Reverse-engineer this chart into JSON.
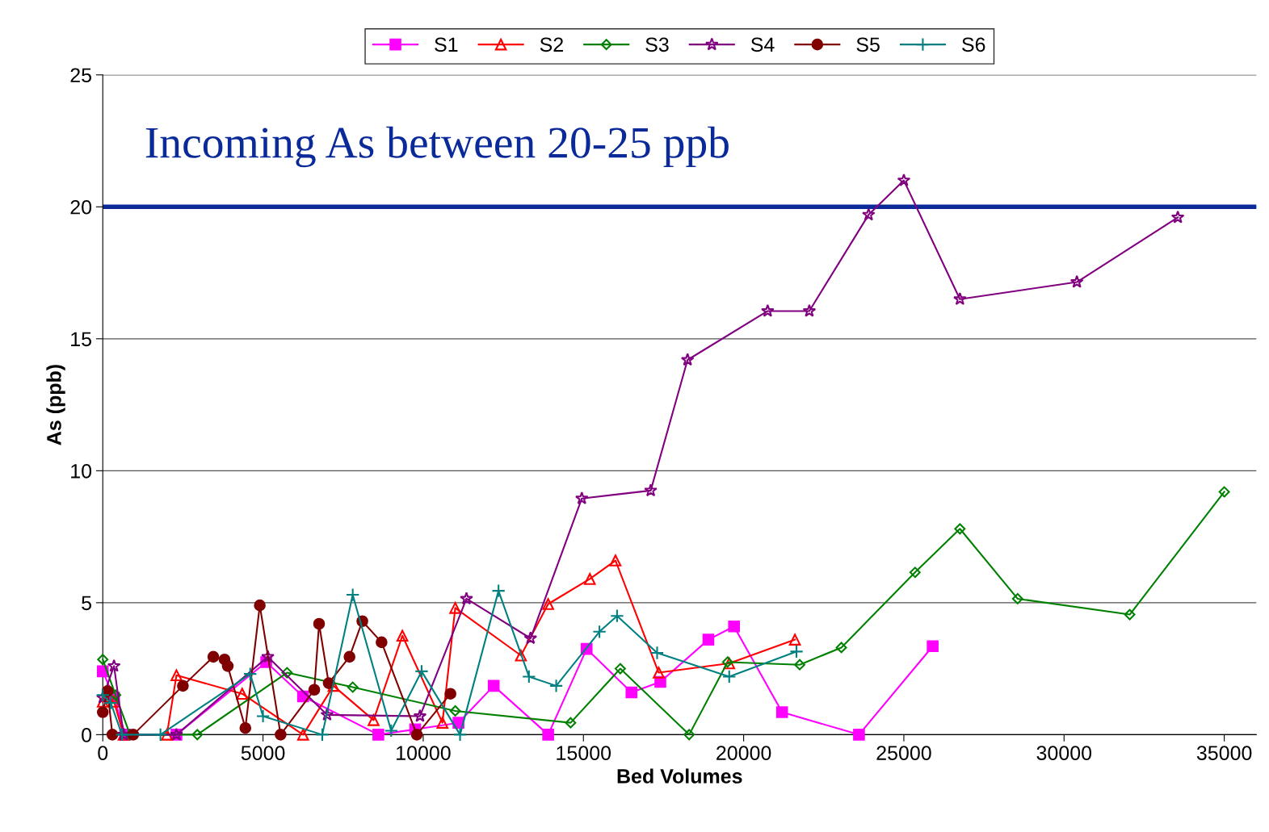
{
  "chart_data": {
    "type": "line",
    "xlabel": "Bed Volumes",
    "ylabel": "As (ppb)",
    "xlim": [
      0,
      36000
    ],
    "xticks": [
      0,
      5000,
      10000,
      15000,
      20000,
      25000,
      30000,
      35000
    ],
    "ylim": [
      0,
      25
    ],
    "yticks": [
      0,
      5,
      10,
      15,
      20,
      25
    ],
    "grid": "y",
    "legend": "top",
    "ref_lines": [
      {
        "axis": "y",
        "value": 20,
        "label": "Incoming As between 20-25 ppb",
        "color": "#0a2a9a"
      }
    ],
    "series": [
      {
        "name": "S1",
        "color": "#ff00ff",
        "marker": "square",
        "x": [
          0,
          350,
          700,
          2300,
          5100,
          6250,
          8600,
          9750,
          11100,
          12200,
          13900,
          15100,
          16500,
          17400,
          18900,
          19700,
          21200,
          23600,
          25900
        ],
        "values": [
          2.4,
          1.4,
          0,
          0,
          2.75,
          1.45,
          0,
          0.2,
          0.45,
          1.85,
          0,
          3.25,
          1.6,
          2.0,
          3.6,
          4.1,
          0.85,
          0,
          3.35
        ]
      },
      {
        "name": "S2",
        "color": "#ff0000",
        "marker": "triangle",
        "x": [
          0,
          350,
          650,
          2000,
          2300,
          4350,
          6250,
          7200,
          8450,
          9350,
          10600,
          11000,
          13050,
          13900,
          15200,
          16000,
          17350,
          19550,
          21600
        ],
        "values": [
          1.25,
          1.25,
          0,
          0,
          2.25,
          1.55,
          0,
          1.85,
          0.55,
          3.75,
          0.45,
          4.8,
          3.0,
          4.95,
          5.9,
          6.6,
          2.35,
          2.7,
          3.6
        ]
      },
      {
        "name": "S3",
        "color": "#008000",
        "marker": "diamond",
        "x": [
          0,
          400,
          850,
          2950,
          5750,
          7800,
          11000,
          14600,
          16150,
          18300,
          19500,
          21750,
          23050,
          25350,
          26750,
          28550,
          32050,
          35000
        ],
        "values": [
          2.85,
          1.5,
          0,
          0,
          2.35,
          1.8,
          0.9,
          0.45,
          2.5,
          0,
          2.75,
          2.65,
          3.3,
          6.15,
          7.8,
          5.15,
          4.55,
          9.2
        ]
      },
      {
        "name": "S4",
        "color": "#800080",
        "marker": "star",
        "x": [
          0,
          350,
          650,
          2300,
          5150,
          7000,
          9900,
          11350,
          13350,
          14950,
          17100,
          18250,
          20750,
          22050,
          23900,
          25000,
          26750,
          30400,
          33550
        ],
        "values": [
          1.4,
          2.6,
          0,
          0,
          2.95,
          0.75,
          0.7,
          5.15,
          3.65,
          8.95,
          9.25,
          14.2,
          16.05,
          16.05,
          19.7,
          21.0,
          16.5,
          17.15,
          19.6
        ]
      },
      {
        "name": "S5",
        "color": "#800000",
        "marker": "circle",
        "x": [
          0,
          150,
          300,
          950,
          2500,
          3450,
          3800,
          3900,
          4450,
          4900,
          5550,
          6600,
          6750,
          7050,
          7700,
          8100,
          8700,
          9800,
          10850
        ],
        "values": [
          0.85,
          1.65,
          0,
          0,
          1.85,
          2.95,
          2.85,
          2.6,
          0.25,
          4.9,
          0,
          1.7,
          4.2,
          1.95,
          2.95,
          4.3,
          3.5,
          0,
          1.55
        ]
      },
      {
        "name": "S6",
        "color": "#008080",
        "marker": "cross",
        "x": [
          0,
          250,
          600,
          1800,
          4600,
          5000,
          6850,
          7800,
          9000,
          9950,
          11150,
          12350,
          13300,
          14150,
          15500,
          16050,
          17300,
          19550,
          21650
        ],
        "values": [
          1.5,
          1.2,
          0,
          0,
          2.3,
          0.7,
          0,
          5.3,
          0.15,
          2.4,
          0,
          5.45,
          2.2,
          1.85,
          3.9,
          4.5,
          3.1,
          2.2,
          3.15
        ]
      }
    ]
  }
}
